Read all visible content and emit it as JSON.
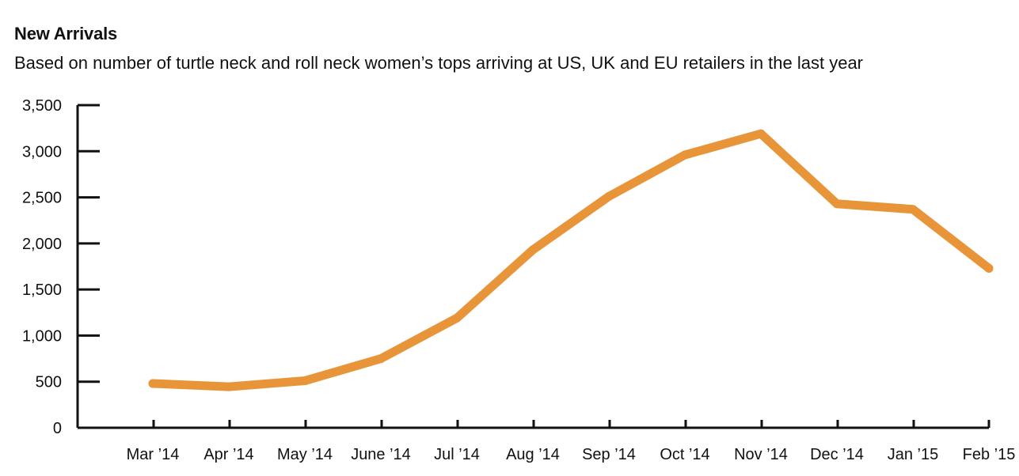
{
  "chart_data": {
    "type": "line",
    "title": "New Arrivals",
    "subtitle": "Based on number of turtle neck and roll neck women’s tops arriving at US, UK and EU retailers in the last year",
    "xlabel": "",
    "ylabel": "",
    "ylim": [
      0,
      3500
    ],
    "yticks": [
      0,
      500,
      1000,
      1500,
      2000,
      2500,
      3000,
      3500
    ],
    "ytick_labels": [
      "0",
      "500",
      "1,000",
      "1,500",
      "2,000",
      "2,500",
      "3,000",
      "3,500"
    ],
    "categories": [
      "Mar ’14",
      "Apr ’14",
      "May ’14",
      "June ’14",
      "Jul ’14",
      "Aug ’14",
      "Sep ’14",
      "Oct ’14",
      "Nov ’14",
      "Dec ’14",
      "Jan ’15",
      "Feb ’15"
    ],
    "series": [
      {
        "values": [
          480,
          445,
          510,
          750,
          1190,
          1930,
          2510,
          2960,
          3190,
          2430,
          2370,
          1730
        ],
        "color": "#E8953A"
      }
    ],
    "grid": false,
    "legend": "none"
  }
}
